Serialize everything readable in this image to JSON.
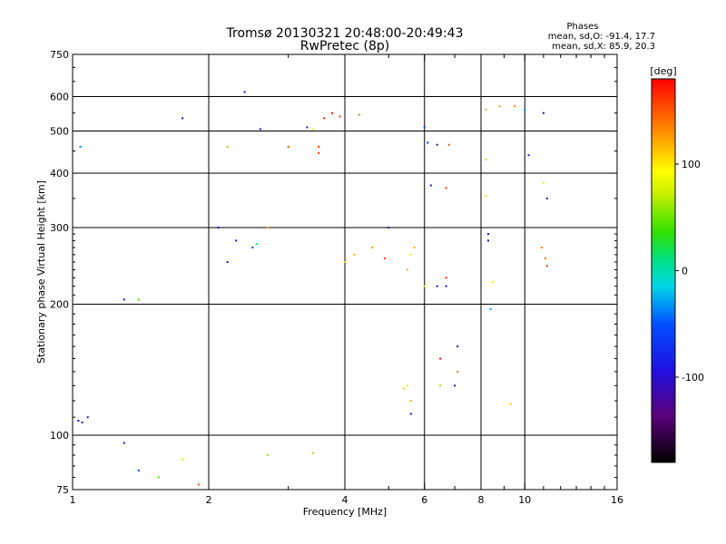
{
  "chart_data": {
    "type": "scatter",
    "title": "Tromsø 20130321 20:48:00-20:49:43",
    "subtitle": "RwPretec (8p)",
    "xlabel": "Frequency [MHz]",
    "ylabel": "Stationary phase Virtual Height [km]",
    "xscale": "log",
    "yscale": "log",
    "xlim": [
      1,
      16
    ],
    "ylim": [
      75,
      750
    ],
    "xticks": [
      1,
      2,
      4,
      6,
      8,
      10,
      16
    ],
    "xgrid": [
      2,
      4,
      6,
      8,
      10
    ],
    "yticks": [
      75,
      100,
      200,
      300,
      400,
      500,
      600,
      750
    ],
    "ygrid": [
      100,
      200,
      300,
      400,
      500,
      600
    ],
    "grid": true,
    "stats": {
      "title": "Phases",
      "line1": "mean, sd,O: -91.4, 17.7",
      "line2": "mean, sd,X: 85.9, 20.3"
    },
    "colorbar": {
      "title": "[deg]",
      "range": [
        -180,
        180
      ],
      "ticks": [
        100,
        0,
        -100
      ]
    },
    "series": [
      {
        "points": [
          [
            1.05,
            107,
            -90
          ],
          [
            1.03,
            108,
            -95
          ],
          [
            1.08,
            110,
            -85
          ],
          [
            1.04,
            460,
            -40
          ],
          [
            1.3,
            96,
            -100
          ],
          [
            1.4,
            83,
            -60
          ],
          [
            1.55,
            80,
            40
          ],
          [
            1.75,
            88,
            80
          ],
          [
            1.75,
            535,
            -95
          ],
          [
            1.9,
            77,
            150
          ],
          [
            2.7,
            90,
            60
          ],
          [
            3.4,
            91,
            120
          ],
          [
            3.5,
            445,
            160
          ],
          [
            3.6,
            535,
            170
          ],
          [
            3.75,
            550,
            175
          ],
          [
            3.9,
            540,
            160
          ],
          [
            4.3,
            545,
            140
          ],
          [
            2.4,
            615,
            -100
          ],
          [
            2.6,
            505,
            -95
          ],
          [
            3.0,
            460,
            150
          ],
          [
            3.3,
            510,
            -90
          ],
          [
            3.4,
            505,
            95
          ],
          [
            3.5,
            460,
            160
          ],
          [
            2.2,
            460,
            120
          ],
          [
            1.3,
            205,
            -90
          ],
          [
            1.4,
            205,
            40
          ],
          [
            2.1,
            300,
            -95
          ],
          [
            2.3,
            280,
            -90
          ],
          [
            2.5,
            270,
            -60
          ],
          [
            2.55,
            275,
            20
          ],
          [
            2.2,
            250,
            -95
          ],
          [
            2.7,
            300,
            120
          ],
          [
            6.0,
            510,
            -60
          ],
          [
            6.1,
            470,
            -80
          ],
          [
            6.4,
            465,
            -90
          ],
          [
            6.8,
            465,
            150
          ],
          [
            8.2,
            560,
            120
          ],
          [
            8.8,
            570,
            125
          ],
          [
            9.5,
            570,
            130
          ],
          [
            10.0,
            560,
            -40
          ],
          [
            11.0,
            550,
            -90
          ],
          [
            8.2,
            430,
            110
          ],
          [
            10.2,
            440,
            -100
          ],
          [
            11.0,
            380,
            90
          ],
          [
            11.2,
            350,
            -90
          ],
          [
            8.2,
            355,
            110
          ],
          [
            8.3,
            290,
            -100
          ],
          [
            8.3,
            280,
            -90
          ],
          [
            6.2,
            375,
            -100
          ],
          [
            6.7,
            370,
            160
          ],
          [
            6.7,
            230,
            170
          ],
          [
            6.7,
            220,
            -100
          ],
          [
            6.4,
            220,
            -110
          ],
          [
            6.0,
            220,
            100
          ],
          [
            7.1,
            160,
            -100
          ],
          [
            7.1,
            140,
            140
          ],
          [
            7.0,
            130,
            -110
          ],
          [
            6.5,
            130,
            60
          ],
          [
            6.5,
            150,
            180
          ],
          [
            8.4,
            195,
            -30
          ],
          [
            8.5,
            225,
            100
          ],
          [
            9.3,
            118,
            110
          ],
          [
            10.9,
            270,
            140
          ],
          [
            11.1,
            255,
            140
          ],
          [
            11.2,
            245,
            160
          ],
          [
            5.5,
            240,
            120
          ],
          [
            5.6,
            260,
            100
          ],
          [
            5.7,
            270,
            120
          ],
          [
            5.5,
            130,
            100
          ],
          [
            5.4,
            128,
            110
          ],
          [
            5.6,
            120,
            120
          ],
          [
            5.6,
            112,
            -100
          ],
          [
            4.0,
            250,
            110
          ],
          [
            4.2,
            260,
            120
          ],
          [
            4.6,
            270,
            130
          ],
          [
            4.9,
            255,
            160
          ],
          [
            5.0,
            300,
            -110
          ]
        ]
      }
    ]
  }
}
